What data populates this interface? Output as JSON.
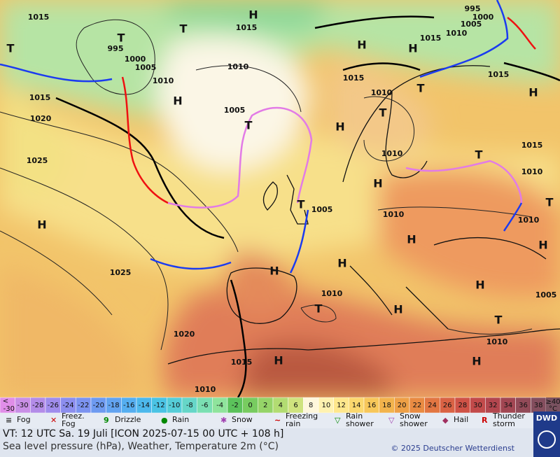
{
  "map": {
    "isobar_labels": [
      "1015",
      "995",
      "1000",
      "1005",
      "1010",
      "1015",
      "1020",
      "1025",
      "1010",
      "1005",
      "1015",
      "1015",
      "1010",
      "1015",
      "1010",
      "1005",
      "1000",
      "995",
      "1015",
      "1015",
      "1010",
      "1010",
      "1010",
      "1005",
      "1010",
      "1025",
      "1020",
      "1010",
      "1010",
      "1005",
      "1015",
      "1010"
    ],
    "pressure_centers": [
      "H",
      "H",
      "H",
      "H",
      "H",
      "H",
      "H",
      "H",
      "H",
      "H",
      "H",
      "H",
      "H",
      "H",
      "H",
      "H",
      "T",
      "T",
      "T",
      "T",
      "T",
      "T",
      "T",
      "T",
      "T",
      "T",
      "T"
    ]
  },
  "scale": {
    "below_symbol": "<",
    "labels": [
      "-30",
      "-30",
      "-28",
      "-26",
      "-24",
      "-22",
      "-20",
      "-18",
      "-16",
      "-14",
      "-12",
      "-10",
      "-8",
      "-6",
      "-4",
      "-2",
      "0",
      "2",
      "4",
      "6",
      "8",
      "10",
      "12",
      "14",
      "16",
      "18",
      "20",
      "22",
      "24",
      "26",
      "28",
      "30",
      "32",
      "34",
      "36",
      "38"
    ],
    "above_label": "≥40",
    "unit": "°C"
  },
  "legend": [
    {
      "lines": [
        "Fog"
      ]
    },
    {
      "lines": [
        "Freez.",
        "Fog"
      ]
    },
    {
      "lines": [
        "Drizzle"
      ]
    },
    {
      "lines": [
        "Rain"
      ]
    },
    {
      "lines": [
        "Snow"
      ]
    },
    {
      "lines": [
        "Freezing",
        "rain"
      ]
    },
    {
      "lines": [
        "Rain",
        "shower"
      ]
    },
    {
      "lines": [
        "Snow",
        "shower"
      ]
    },
    {
      "lines": [
        "Hail"
      ]
    },
    {
      "lines": [
        "Thunder",
        "storm"
      ]
    }
  ],
  "footer": {
    "valid_time": "VT: 12 UTC Sa.  19 Juli [ICON 2025-07-15  00 UTC + 108 h]",
    "description": "Sea level pressure (hPa), Weather, Temperature 2m (°C)",
    "copyright": "© 2025 Deutscher Wetterdienst",
    "logo": "DWD"
  }
}
